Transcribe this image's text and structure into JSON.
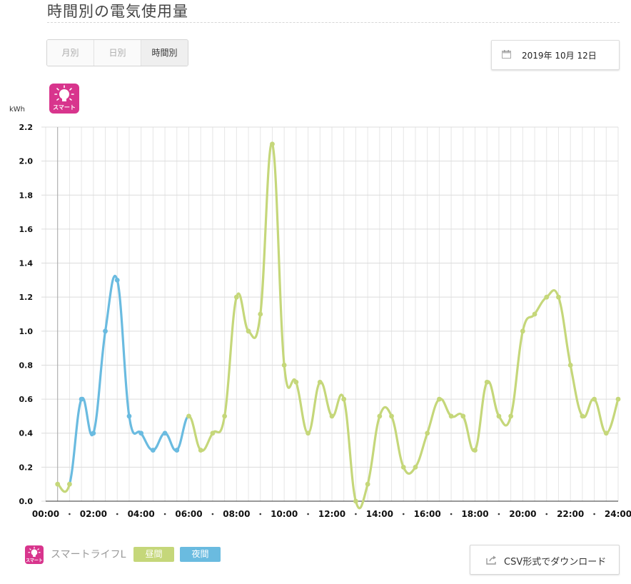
{
  "page": {
    "title": "時間別の電気使用量"
  },
  "tabs": [
    {
      "label": "月別",
      "active": false
    },
    {
      "label": "日別",
      "active": false
    },
    {
      "label": "時間別",
      "active": true
    }
  ],
  "date_picker": {
    "value": "2019年 10月 12日",
    "icon": "calendar-icon"
  },
  "badge": {
    "label": "スマート",
    "icon": "lightbulb-icon",
    "color": "#d8358d"
  },
  "legend": {
    "plan_name": "スマートライフL",
    "items": [
      {
        "label": "昼間",
        "color": "#c5d77a"
      },
      {
        "label": "夜間",
        "color": "#6abbe0"
      }
    ]
  },
  "csv_button": {
    "label": "CSV形式でダウンロード",
    "icon": "export-icon"
  },
  "chart_data": {
    "type": "line",
    "ylabel": "kWh",
    "ylim": [
      0,
      2.2
    ],
    "yticks": [
      "0.0",
      "0.2",
      "0.4",
      "0.6",
      "0.8",
      "1.0",
      "1.2",
      "1.4",
      "1.6",
      "1.8",
      "2.0",
      "2.2"
    ],
    "xlim": [
      "00:00",
      "24:00"
    ],
    "xticks": [
      "00:00",
      "02:00",
      "04:00",
      "06:00",
      "08:00",
      "10:00",
      "12:00",
      "14:00",
      "16:00",
      "18:00",
      "20:00",
      "22:00",
      "24:00"
    ],
    "x": [
      "00:30",
      "01:00",
      "01:30",
      "02:00",
      "02:30",
      "03:00",
      "03:30",
      "04:00",
      "04:30",
      "05:00",
      "05:30",
      "06:00",
      "06:30",
      "07:00",
      "07:30",
      "08:00",
      "08:30",
      "09:00",
      "09:30",
      "10:00",
      "10:30",
      "11:00",
      "11:30",
      "12:00",
      "12:30",
      "13:00",
      "13:30",
      "14:00",
      "14:30",
      "15:00",
      "15:30",
      "16:00",
      "16:30",
      "17:00",
      "17:30",
      "18:00",
      "18:30",
      "19:00",
      "19:30",
      "20:00",
      "20:30",
      "21:00",
      "21:30",
      "22:00",
      "22:30",
      "23:00",
      "23:30",
      "24:00"
    ],
    "values": [
      0.1,
      0.1,
      0.6,
      0.4,
      1.0,
      1.3,
      0.5,
      0.4,
      0.3,
      0.4,
      0.3,
      0.5,
      0.3,
      0.4,
      0.5,
      1.2,
      1.0,
      1.1,
      2.1,
      0.8,
      0.7,
      0.4,
      0.7,
      0.5,
      0.6,
      0.0,
      0.1,
      0.5,
      0.5,
      0.2,
      0.2,
      0.4,
      0.6,
      0.5,
      0.5,
      0.3,
      0.7,
      0.5,
      0.5,
      1.0,
      1.1,
      1.2,
      1.2,
      0.8,
      0.5,
      0.6,
      0.4,
      0.6
    ],
    "series": [
      {
        "name": "昼間",
        "color": "#c5d77a",
        "ranges": [
          [
            "00:30",
            "01:00"
          ],
          [
            "06:00",
            "24:00"
          ]
        ]
      },
      {
        "name": "夜間",
        "color": "#6abbe0",
        "ranges": [
          [
            "01:00",
            "06:00"
          ]
        ]
      }
    ],
    "grid": true
  }
}
